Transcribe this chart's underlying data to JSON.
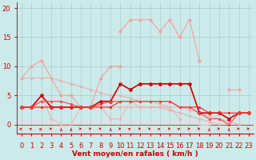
{
  "x": [
    0,
    1,
    2,
    3,
    4,
    5,
    6,
    7,
    8,
    9,
    10,
    11,
    12,
    13,
    14,
    15,
    16,
    17,
    18,
    19,
    20,
    21,
    22,
    23
  ],
  "series": [
    {
      "name": "light_pink_rafales",
      "color": "#f4a0a0",
      "linewidth": 0.8,
      "markersize": 2.5,
      "y": [
        null,
        null,
        null,
        null,
        null,
        null,
        null,
        null,
        null,
        null,
        16,
        18,
        18,
        18,
        16,
        18,
        15,
        18,
        11,
        null,
        null,
        null,
        null,
        null
      ]
    },
    {
      "name": "pink_upper_curve",
      "color": "#f4a0a0",
      "linewidth": 0.8,
      "markersize": 2.5,
      "y": [
        8,
        10,
        11,
        8,
        5,
        5,
        3,
        3,
        8,
        10,
        10,
        null,
        null,
        null,
        null,
        null,
        null,
        null,
        null,
        null,
        null,
        null,
        null,
        null
      ]
    },
    {
      "name": "pink_upper_right",
      "color": "#f4a0a0",
      "linewidth": 0.8,
      "markersize": 2.5,
      "y": [
        null,
        null,
        null,
        null,
        null,
        null,
        null,
        null,
        null,
        null,
        null,
        null,
        null,
        null,
        null,
        null,
        null,
        null,
        11,
        null,
        null,
        6,
        6,
        null
      ]
    },
    {
      "name": "pink_diagonal_top",
      "color": "#e8b0b0",
      "linewidth": 0.8,
      "markersize": 2,
      "y": [
        8,
        8,
        8,
        8,
        7.5,
        7,
        6.5,
        6,
        5.5,
        5,
        5,
        4.5,
        4,
        4,
        3.5,
        3,
        3,
        2.5,
        2,
        1.5,
        1,
        0.5,
        0,
        null
      ]
    },
    {
      "name": "pink_lower_diagonal",
      "color": "#e8b0b0",
      "linewidth": 0.8,
      "markersize": 2,
      "y": [
        3,
        3,
        3,
        3,
        3,
        3,
        3,
        3,
        3,
        3,
        3,
        3,
        3,
        3,
        3,
        2.5,
        2,
        1.5,
        1,
        0.5,
        0,
        null,
        null,
        null
      ]
    },
    {
      "name": "pink_zigzag_low",
      "color": "#f4b0b0",
      "linewidth": 0.8,
      "markersize": 2,
      "y": [
        3,
        3,
        5,
        1,
        0,
        0,
        3,
        3,
        3,
        1,
        1,
        4,
        3,
        3,
        3,
        3,
        1,
        null,
        0,
        0,
        null,
        null,
        null,
        null
      ]
    },
    {
      "name": "red_dark_main",
      "color": "#cc0000",
      "linewidth": 1.2,
      "markersize": 3,
      "y": [
        3,
        3,
        5,
        3,
        3,
        3,
        3,
        3,
        4,
        4,
        7,
        6,
        7,
        7,
        7,
        7,
        7,
        7,
        2,
        2,
        2,
        1,
        2,
        2
      ]
    },
    {
      "name": "red_flat",
      "color": "#ff2020",
      "linewidth": 0.8,
      "markersize": 2,
      "y": [
        3,
        3,
        3,
        3,
        3,
        3,
        3,
        3,
        3,
        3,
        4,
        4,
        4,
        4,
        4,
        4,
        3,
        3,
        3,
        2,
        2,
        2,
        2,
        2
      ]
    },
    {
      "name": "red_declining2",
      "color": "#ff4040",
      "linewidth": 0.8,
      "markersize": 2,
      "y": [
        3,
        3,
        4,
        4,
        4,
        3.5,
        3,
        3,
        3.5,
        4,
        4,
        4,
        4,
        4,
        4,
        4,
        3,
        3,
        2,
        1,
        1,
        0,
        2,
        2
      ]
    }
  ],
  "arrow_angles": [
    45,
    45,
    30,
    90,
    0,
    0,
    90,
    90,
    90,
    0,
    90,
    45,
    90,
    90,
    45,
    90,
    45,
    90,
    90,
    0,
    90,
    0,
    90,
    90
  ],
  "xlim": [
    -0.5,
    23.5
  ],
  "ylim": [
    -1.5,
    21
  ],
  "yticks": [
    0,
    5,
    10,
    15,
    20
  ],
  "xticks": [
    0,
    1,
    2,
    3,
    4,
    5,
    6,
    7,
    8,
    9,
    10,
    11,
    12,
    13,
    14,
    15,
    16,
    17,
    18,
    19,
    20,
    21,
    22,
    23
  ],
  "xlabel": "Vent moyen/en rafales ( km/h )",
  "bg_color": "#cdeaea",
  "grid_color": "#aacccc",
  "axis_color": "#cc0000",
  "text_color": "#cc0000",
  "label_fontsize": 6.5,
  "tick_fontsize": 6
}
